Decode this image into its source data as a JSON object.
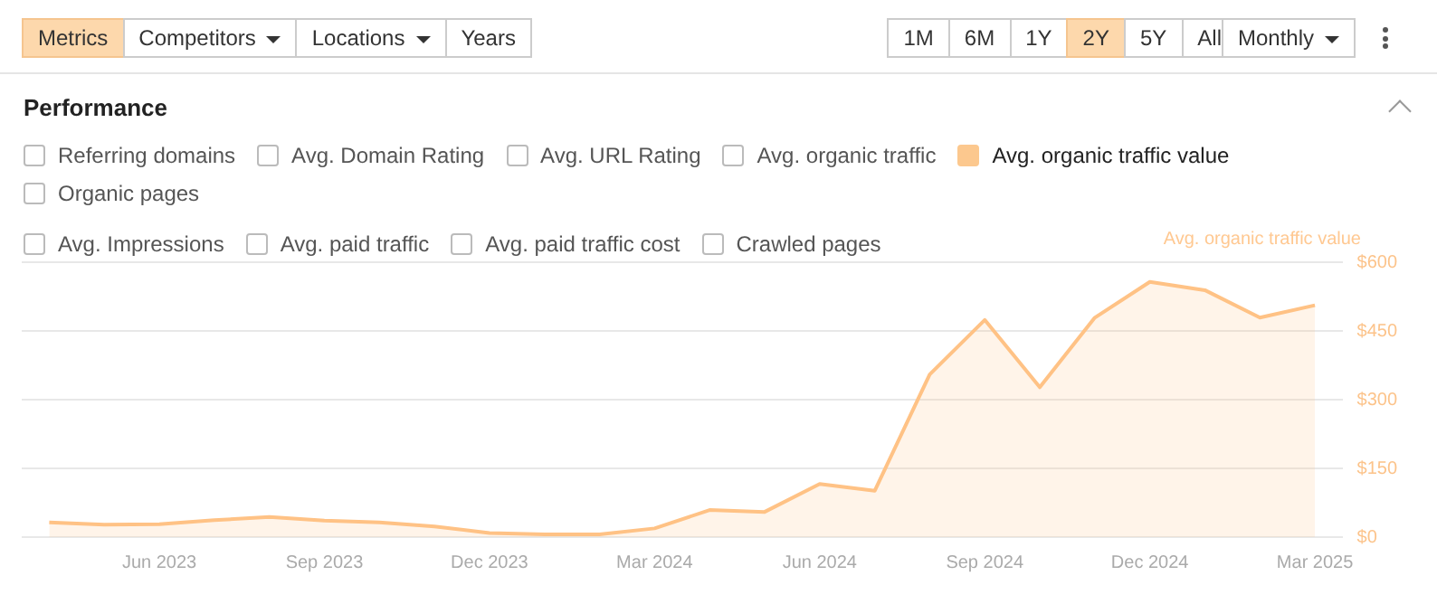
{
  "chart_data": {
    "type": "area",
    "title": "Performance",
    "categories": [
      null,
      null,
      "Jun 2023",
      null,
      null,
      "Sep 2023",
      null,
      null,
      "Dec 2023",
      null,
      null,
      "Mar 2024",
      null,
      null,
      "Jun 2024",
      null,
      null,
      "Sep 2024",
      null,
      null,
      "Dec 2024",
      null,
      null,
      "Mar 2025"
    ],
    "series": [
      {
        "name": "Avg. organic traffic value",
        "color": "#ffc285",
        "values": [
          32,
          27,
          28,
          37,
          44,
          36,
          32,
          23,
          9,
          6,
          6,
          19,
          59,
          55,
          116,
          101,
          355,
          474,
          327,
          479,
          557,
          539,
          479,
          506
        ]
      }
    ],
    "ylim": [
      0,
      600
    ],
    "yticks": [
      {
        "value": 0,
        "label": "$0"
      },
      {
        "value": 150,
        "label": "$150"
      },
      {
        "value": 300,
        "label": "$300"
      },
      {
        "value": 450,
        "label": "$450"
      },
      {
        "value": 600,
        "label": "$600"
      }
    ],
    "grid": "y",
    "legend": false,
    "annotations": [
      "Metrics",
      "Competitors",
      "Locations",
      "Years",
      "1M",
      "6M",
      "1Y",
      "2Y",
      "5Y",
      "All",
      "Monthly",
      "Referring domains",
      "Avg. Domain Rating",
      "Avg. URL Rating",
      "Avg. organic traffic",
      "Avg. organic traffic value",
      "Organic pages",
      "Avg. Impressions",
      "Avg. paid traffic",
      "Avg. paid traffic cost",
      "Crawled pages"
    ]
  }
}
